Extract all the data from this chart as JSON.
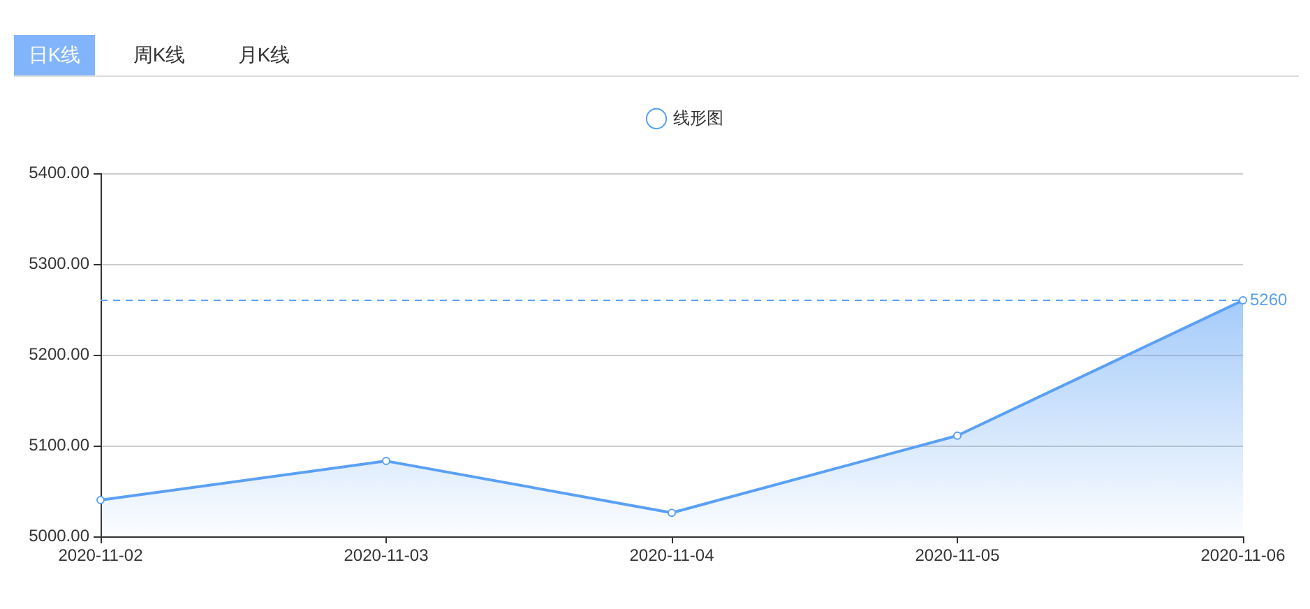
{
  "chart_data": {
    "type": "area",
    "annotations": [
      "日K线",
      "周K线",
      "月K线"
    ],
    "categories": [
      "2020-11-02",
      "2020-11-03",
      "2020-11-04",
      "2020-11-05",
      "2020-11-06"
    ],
    "series": [
      {
        "name": "线形图",
        "color": "#5aa0f5",
        "values": [
          5040,
          5083,
          5026,
          5111,
          5260
        ]
      }
    ],
    "ylim": [
      5000,
      5400
    ],
    "yticks": [
      {
        "value": 5000,
        "label": "5000.00"
      },
      {
        "value": 5100,
        "label": "5100.00"
      },
      {
        "value": 5200,
        "label": "5200.00"
      },
      {
        "value": 5300,
        "label": "5300.00"
      },
      {
        "value": 5400,
        "label": "5400.00"
      }
    ],
    "grid": "y",
    "legend": "top",
    "marker": "circle",
    "ref_lines": [
      {
        "axis": "y",
        "value": 5260,
        "label": "5260",
        "color": "#5aa0f5",
        "line_style": "dashed"
      }
    ]
  }
}
